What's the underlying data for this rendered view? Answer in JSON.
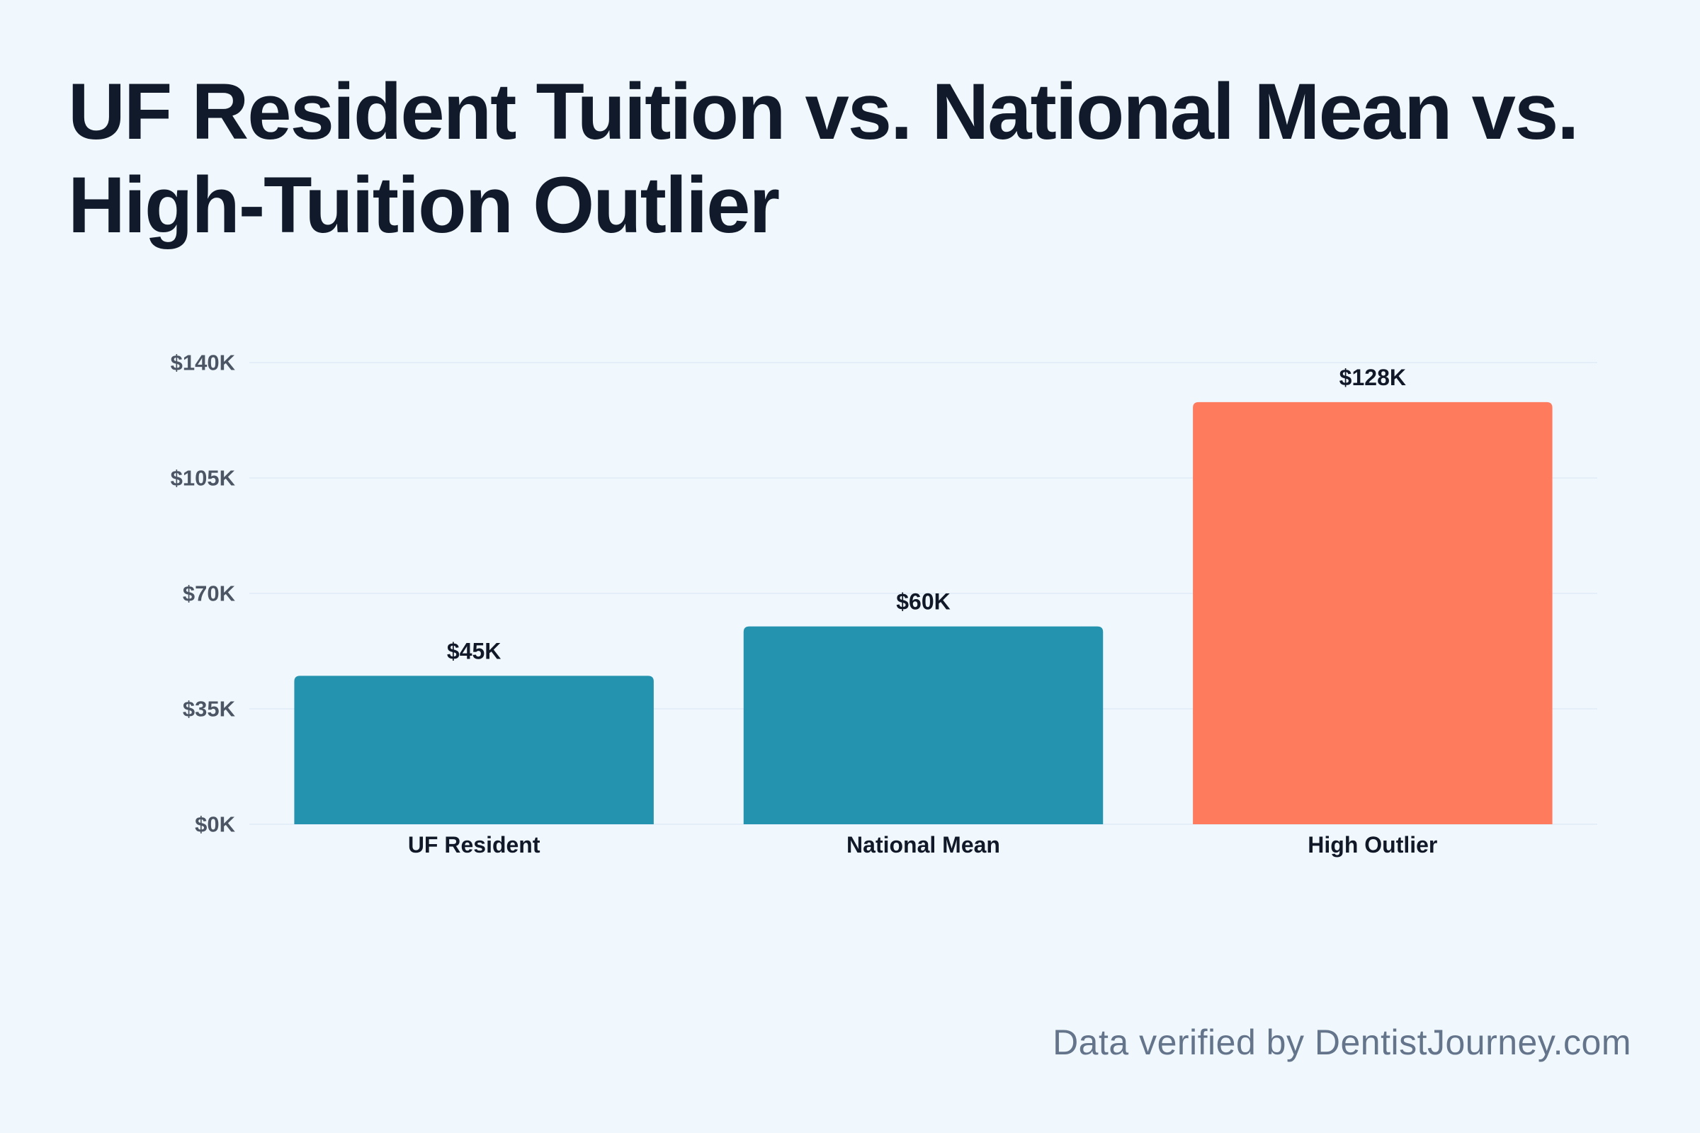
{
  "title": "UF Resident Tuition vs. National Mean vs. High-Tuition Outlier",
  "footer": "Data verified by DentistJourney.com",
  "colors": {
    "background": "#f0f7fd",
    "title": "#111a2b",
    "tick_label": "#4b5563",
    "category_label": "#111827",
    "value_label": "#111827",
    "gridline": "#e3eef8",
    "footer": "#64748b"
  },
  "chart_data": {
    "type": "bar",
    "title": "UF Resident Tuition vs. National Mean vs. High-Tuition Outlier",
    "categories": [
      "UF Resident",
      "National Mean",
      "High Outlier"
    ],
    "values": [
      45,
      60,
      128
    ],
    "value_labels": [
      "$45K",
      "$60K",
      "$128K"
    ],
    "bar_colors": [
      "#2393b0",
      "#2393b0",
      "#ff7b5e"
    ],
    "unit": "$K",
    "ylim": [
      0,
      140
    ],
    "yticks": [
      0,
      35,
      70,
      105,
      140
    ],
    "ytick_labels": [
      "$0K",
      "$35K",
      "$70K",
      "$105K",
      "$140K"
    ],
    "xlabel": "",
    "ylabel": "",
    "grid": true,
    "legend": "none"
  }
}
